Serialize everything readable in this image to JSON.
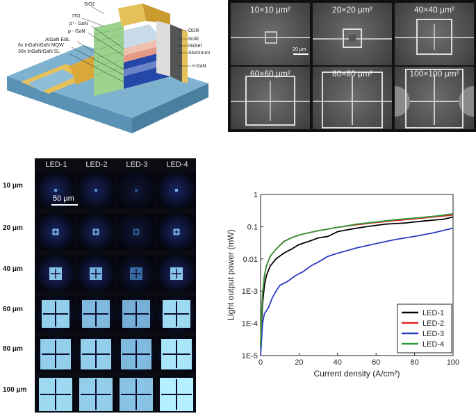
{
  "schematic": {
    "labels": [
      "SiO2",
      "ITO",
      "p⁺- GaN",
      "p - GaN",
      "AlGaN EBL",
      "6x InGaN/GaN MQW",
      "30x InGaN/GaN SL",
      "ODR",
      "Gold",
      "Nickel",
      "Aluminum",
      "n-GaN"
    ]
  },
  "sem": {
    "cells": [
      "10×10 μm²",
      "20×20 μm²",
      "40×40 μm²",
      "60×60 μm²",
      "80×80 μm²",
      "100×100 μm²"
    ],
    "scale_bar": "20 μm"
  },
  "el_grid": {
    "columns": [
      "LED-1",
      "LED-2",
      "LED-3",
      "LED-4"
    ],
    "rows": [
      "10 μm",
      "20 μm",
      "40 μm",
      "60 μm",
      "80 μm",
      "100 μm"
    ],
    "scale_bar": "50 μm"
  },
  "chart_data": {
    "type": "line",
    "xlabel": "Current density (A/cm²)",
    "ylabel": "Light output power (mW)",
    "xlim": [
      0,
      100
    ],
    "ylim": [
      1e-05,
      1
    ],
    "y_scale": "log",
    "x_ticks": [
      "0",
      "20",
      "40",
      "60",
      "80",
      "100"
    ],
    "y_ticks": [
      "1E-5",
      "1E-4",
      "1E-3",
      "0.01",
      "0.1",
      "1"
    ],
    "legend_position": "bottom-right",
    "series": [
      {
        "name": "LED-1",
        "color": "#000000",
        "x": [
          0,
          0.5,
          1,
          2,
          3,
          5,
          8,
          12,
          16,
          20,
          25,
          30,
          35,
          40,
          45,
          50,
          55,
          60,
          65,
          70,
          75,
          80,
          85,
          90,
          95,
          100
        ],
        "y": [
          2e-05,
          0.0001,
          0.0004,
          0.0015,
          0.003,
          0.006,
          0.01,
          0.015,
          0.02,
          0.028,
          0.035,
          0.045,
          0.05,
          0.07,
          0.08,
          0.09,
          0.1,
          0.11,
          0.12,
          0.125,
          0.13,
          0.14,
          0.15,
          0.16,
          0.17,
          0.2
        ]
      },
      {
        "name": "LED-2",
        "color": "#e02020",
        "x": [
          0,
          0.5,
          1,
          2,
          3,
          5,
          8,
          12,
          16,
          20,
          25,
          30,
          40,
          50,
          60,
          70,
          80,
          90,
          100
        ],
        "y": [
          2e-05,
          0.0002,
          0.0008,
          0.003,
          0.006,
          0.012,
          0.02,
          0.035,
          0.045,
          0.055,
          0.065,
          0.075,
          0.095,
          0.115,
          0.135,
          0.155,
          0.175,
          0.2,
          0.23
        ]
      },
      {
        "name": "LED-3",
        "color": "#2a3cbf",
        "x": [
          0,
          0.5,
          1,
          2,
          4,
          6,
          8,
          10,
          14,
          18,
          22,
          26,
          30,
          35,
          40,
          50,
          60,
          70,
          80,
          90,
          100
        ],
        "y": [
          1e-05,
          3e-05,
          0.0001,
          0.0002,
          0.0003,
          0.0006,
          0.001,
          0.0015,
          0.002,
          0.003,
          0.004,
          0.006,
          0.008,
          0.012,
          0.015,
          0.022,
          0.03,
          0.04,
          0.05,
          0.065,
          0.09
        ]
      },
      {
        "name": "LED-4",
        "color": "#2e9a3a",
        "x": [
          0,
          0.5,
          1,
          2,
          3,
          5,
          8,
          12,
          16,
          20,
          25,
          30,
          40,
          50,
          60,
          70,
          80,
          90,
          100
        ],
        "y": [
          2e-05,
          0.0002,
          0.0008,
          0.003,
          0.006,
          0.012,
          0.02,
          0.034,
          0.045,
          0.055,
          0.065,
          0.075,
          0.095,
          0.12,
          0.14,
          0.165,
          0.185,
          0.21,
          0.25
        ]
      }
    ]
  }
}
